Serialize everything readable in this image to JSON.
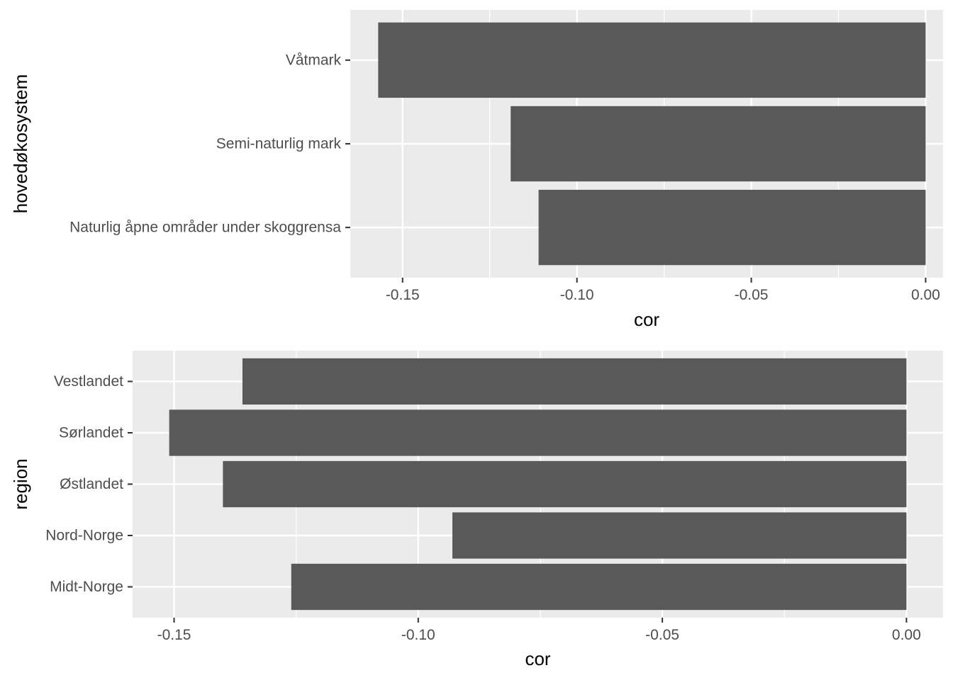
{
  "chart_data": [
    {
      "type": "bar",
      "orientation": "horizontal",
      "xlabel": "cor",
      "ylabel": "hovedøkosystem",
      "categories": [
        "Naturlig åpne områder under skoggrensa",
        "Semi-naturlig mark",
        "Våtmark"
      ],
      "values": [
        -0.111,
        -0.119,
        -0.157
      ],
      "xlim": [
        -0.165,
        0.005
      ],
      "xticks": [
        -0.15,
        -0.1,
        -0.05,
        0.0
      ],
      "xtick_labels": [
        "-0.15",
        "-0.10",
        "-0.05",
        "0.00"
      ],
      "bar_color": "#595959",
      "panel_color": "#ebebeb",
      "grid": true
    },
    {
      "type": "bar",
      "orientation": "horizontal",
      "xlabel": "cor",
      "ylabel": "region",
      "categories": [
        "Midt-Norge",
        "Nord-Norge",
        "Østlandet",
        "Sørlandet",
        "Vestlandet"
      ],
      "values": [
        -0.126,
        -0.093,
        -0.14,
        -0.151,
        -0.136
      ],
      "xlim": [
        -0.1585,
        0.0075
      ],
      "xticks": [
        -0.15,
        -0.1,
        -0.05,
        0.0
      ],
      "xtick_labels": [
        "-0.15",
        "-0.10",
        "-0.05",
        "0.00"
      ],
      "bar_color": "#595959",
      "panel_color": "#ebebeb",
      "grid": true
    }
  ]
}
